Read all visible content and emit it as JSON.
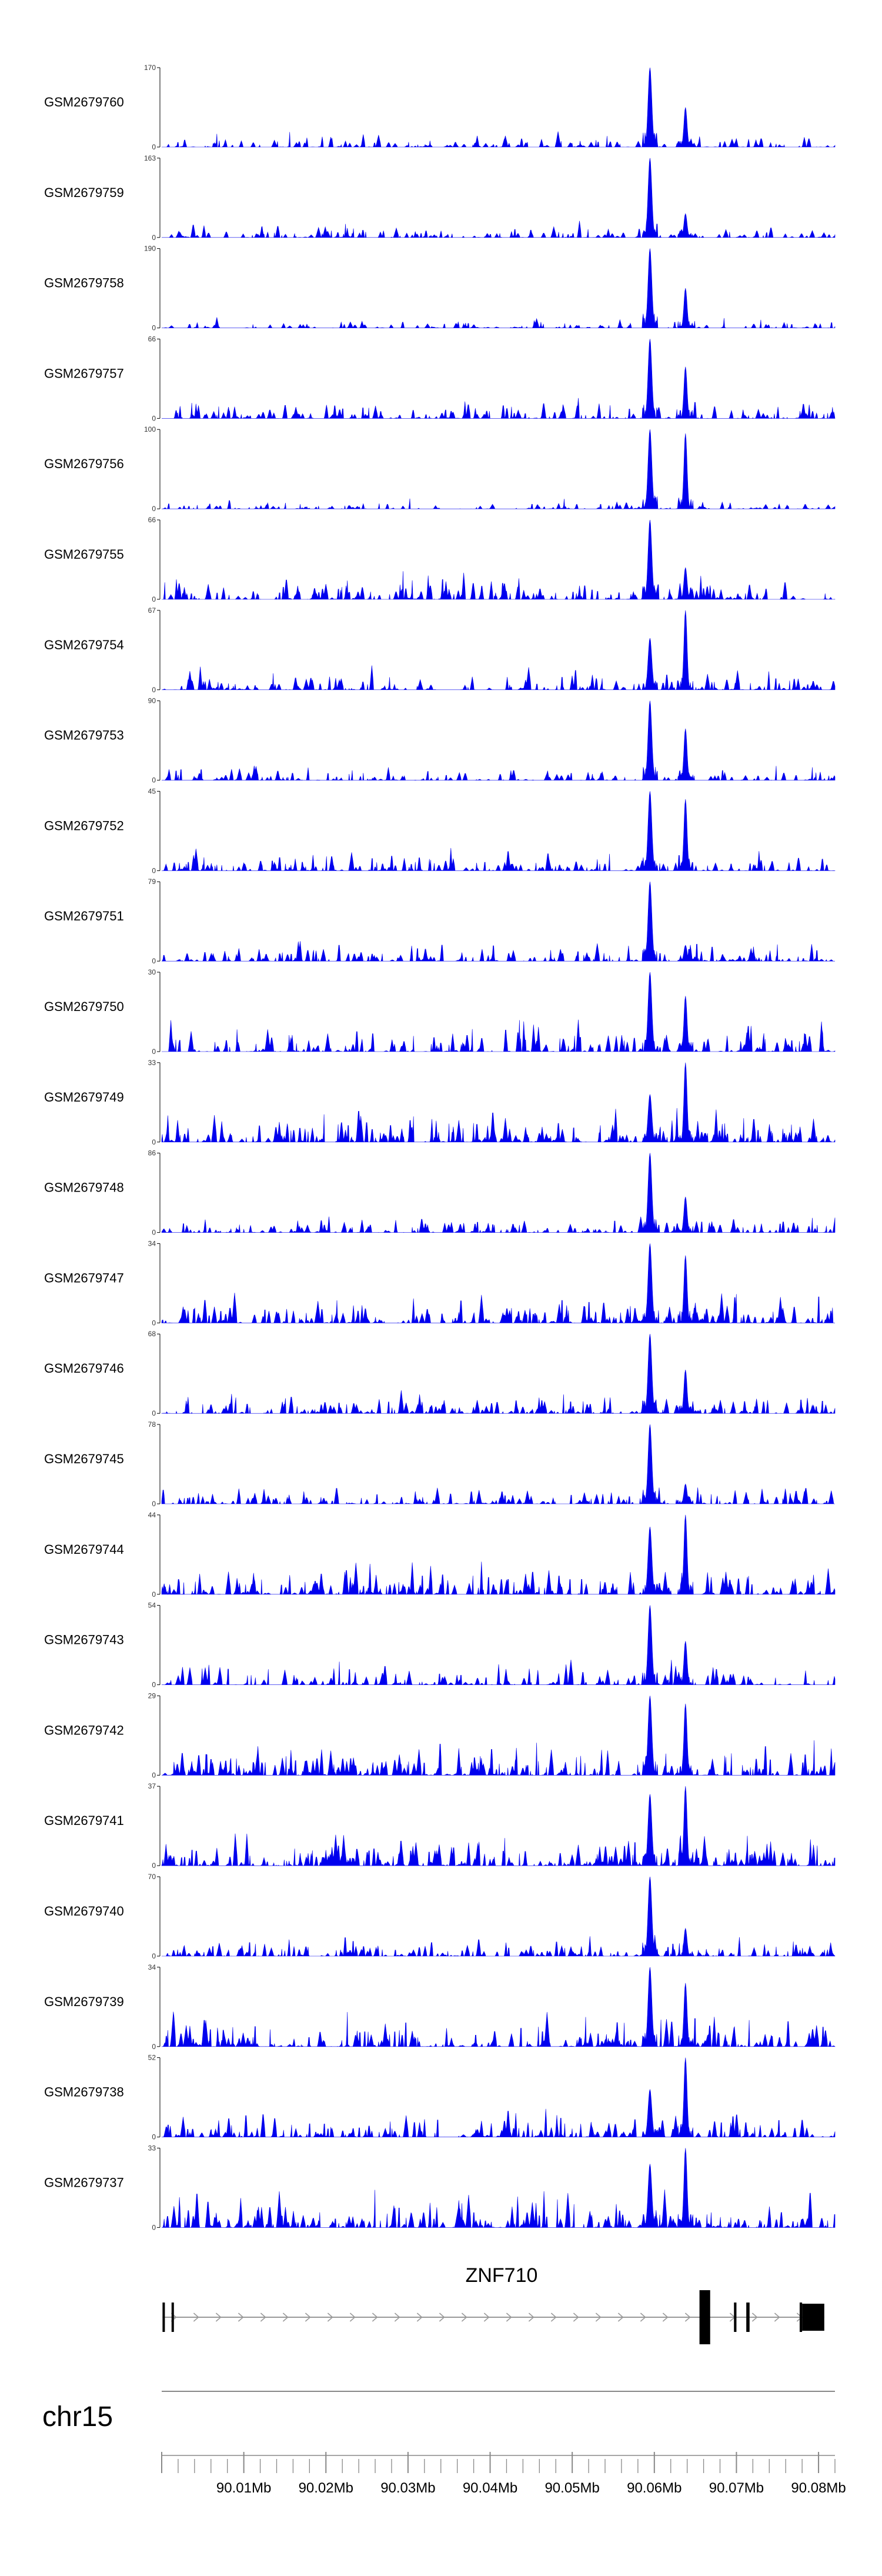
{
  "chart_data": {
    "type": "area",
    "title": "",
    "chromosome": "chr15",
    "genomic_range_mb": [
      90.0,
      90.082
    ],
    "xticks": [
      "90.01Mb",
      "90.02Mb",
      "90.03Mb",
      "90.04Mb",
      "90.05Mb",
      "90.06Mb",
      "90.07Mb",
      "90.08Mb"
    ],
    "xtick_values_mb": [
      90.01,
      90.02,
      90.03,
      90.04,
      90.05,
      90.06,
      90.07,
      90.08
    ],
    "peaks_mb": [
      90.0595,
      90.0638
    ],
    "series": [
      {
        "name": "GSM2679760",
        "ymax": "170",
        "peak_fraction": [
          1.0,
          0.5
        ],
        "noise": 0.2
      },
      {
        "name": "GSM2679759",
        "ymax": "163",
        "peak_fraction": [
          1.0,
          0.3
        ],
        "noise": 0.2
      },
      {
        "name": "GSM2679758",
        "ymax": "190",
        "peak_fraction": [
          1.0,
          0.5
        ],
        "noise": 0.15
      },
      {
        "name": "GSM2679757",
        "ymax": "66",
        "peak_fraction": [
          1.0,
          0.65
        ],
        "noise": 0.3
      },
      {
        "name": "GSM2679756",
        "ymax": "100",
        "peak_fraction": [
          1.0,
          0.95
        ],
        "noise": 0.15
      },
      {
        "name": "GSM2679755",
        "ymax": "66",
        "peak_fraction": [
          1.0,
          0.4
        ],
        "noise": 0.35
      },
      {
        "name": "GSM2679754",
        "ymax": "67",
        "peak_fraction": [
          0.65,
          1.0
        ],
        "noise": 0.3
      },
      {
        "name": "GSM2679753",
        "ymax": "90",
        "peak_fraction": [
          1.0,
          0.65
        ],
        "noise": 0.2
      },
      {
        "name": "GSM2679752",
        "ymax": "45",
        "peak_fraction": [
          1.0,
          0.9
        ],
        "noise": 0.3
      },
      {
        "name": "GSM2679751",
        "ymax": "79",
        "peak_fraction": [
          1.0,
          0.2
        ],
        "noise": 0.3
      },
      {
        "name": "GSM2679750",
        "ymax": "30",
        "peak_fraction": [
          1.0,
          0.7
        ],
        "noise": 0.45
      },
      {
        "name": "GSM2679749",
        "ymax": "33",
        "peak_fraction": [
          0.6,
          1.0
        ],
        "noise": 0.45
      },
      {
        "name": "GSM2679748",
        "ymax": "86",
        "peak_fraction": [
          1.0,
          0.45
        ],
        "noise": 0.25
      },
      {
        "name": "GSM2679747",
        "ymax": "34",
        "peak_fraction": [
          1.0,
          0.85
        ],
        "noise": 0.45
      },
      {
        "name": "GSM2679746",
        "ymax": "68",
        "peak_fraction": [
          1.0,
          0.55
        ],
        "noise": 0.3
      },
      {
        "name": "GSM2679745",
        "ymax": "78",
        "peak_fraction": [
          1.0,
          0.25
        ],
        "noise": 0.25
      },
      {
        "name": "GSM2679744",
        "ymax": "44",
        "peak_fraction": [
          0.85,
          1.0
        ],
        "noise": 0.4
      },
      {
        "name": "GSM2679743",
        "ymax": "54",
        "peak_fraction": [
          1.0,
          0.55
        ],
        "noise": 0.3
      },
      {
        "name": "GSM2679742",
        "ymax": "29",
        "peak_fraction": [
          1.0,
          0.9
        ],
        "noise": 0.5
      },
      {
        "name": "GSM2679741",
        "ymax": "37",
        "peak_fraction": [
          0.9,
          1.0
        ],
        "noise": 0.45
      },
      {
        "name": "GSM2679740",
        "ymax": "70",
        "peak_fraction": [
          1.0,
          0.35
        ],
        "noise": 0.3
      },
      {
        "name": "GSM2679739",
        "ymax": "34",
        "peak_fraction": [
          1.0,
          0.8
        ],
        "noise": 0.45
      },
      {
        "name": "GSM2679738",
        "ymax": "52",
        "peak_fraction": [
          0.6,
          1.0
        ],
        "noise": 0.35
      },
      {
        "name": "GSM2679737",
        "ymax": "33",
        "peak_fraction": [
          0.8,
          1.0
        ],
        "noise": 0.5
      }
    ],
    "gene": {
      "name": "ZNF710",
      "strand": "+",
      "exons_mb": [
        [
          90.0001,
          90.0003
        ],
        [
          90.0012,
          90.0014
        ],
        [
          90.0655,
          90.0668
        ],
        [
          90.0697,
          90.07
        ],
        [
          90.0712,
          90.0716
        ],
        [
          90.0777,
          90.078
        ],
        [
          90.078,
          90.0807
        ]
      ]
    },
    "y_min_label": "0",
    "colors": {
      "signal": "#0000ee",
      "axis": "#000000",
      "gene": "#000000",
      "intron": "#999999"
    }
  }
}
